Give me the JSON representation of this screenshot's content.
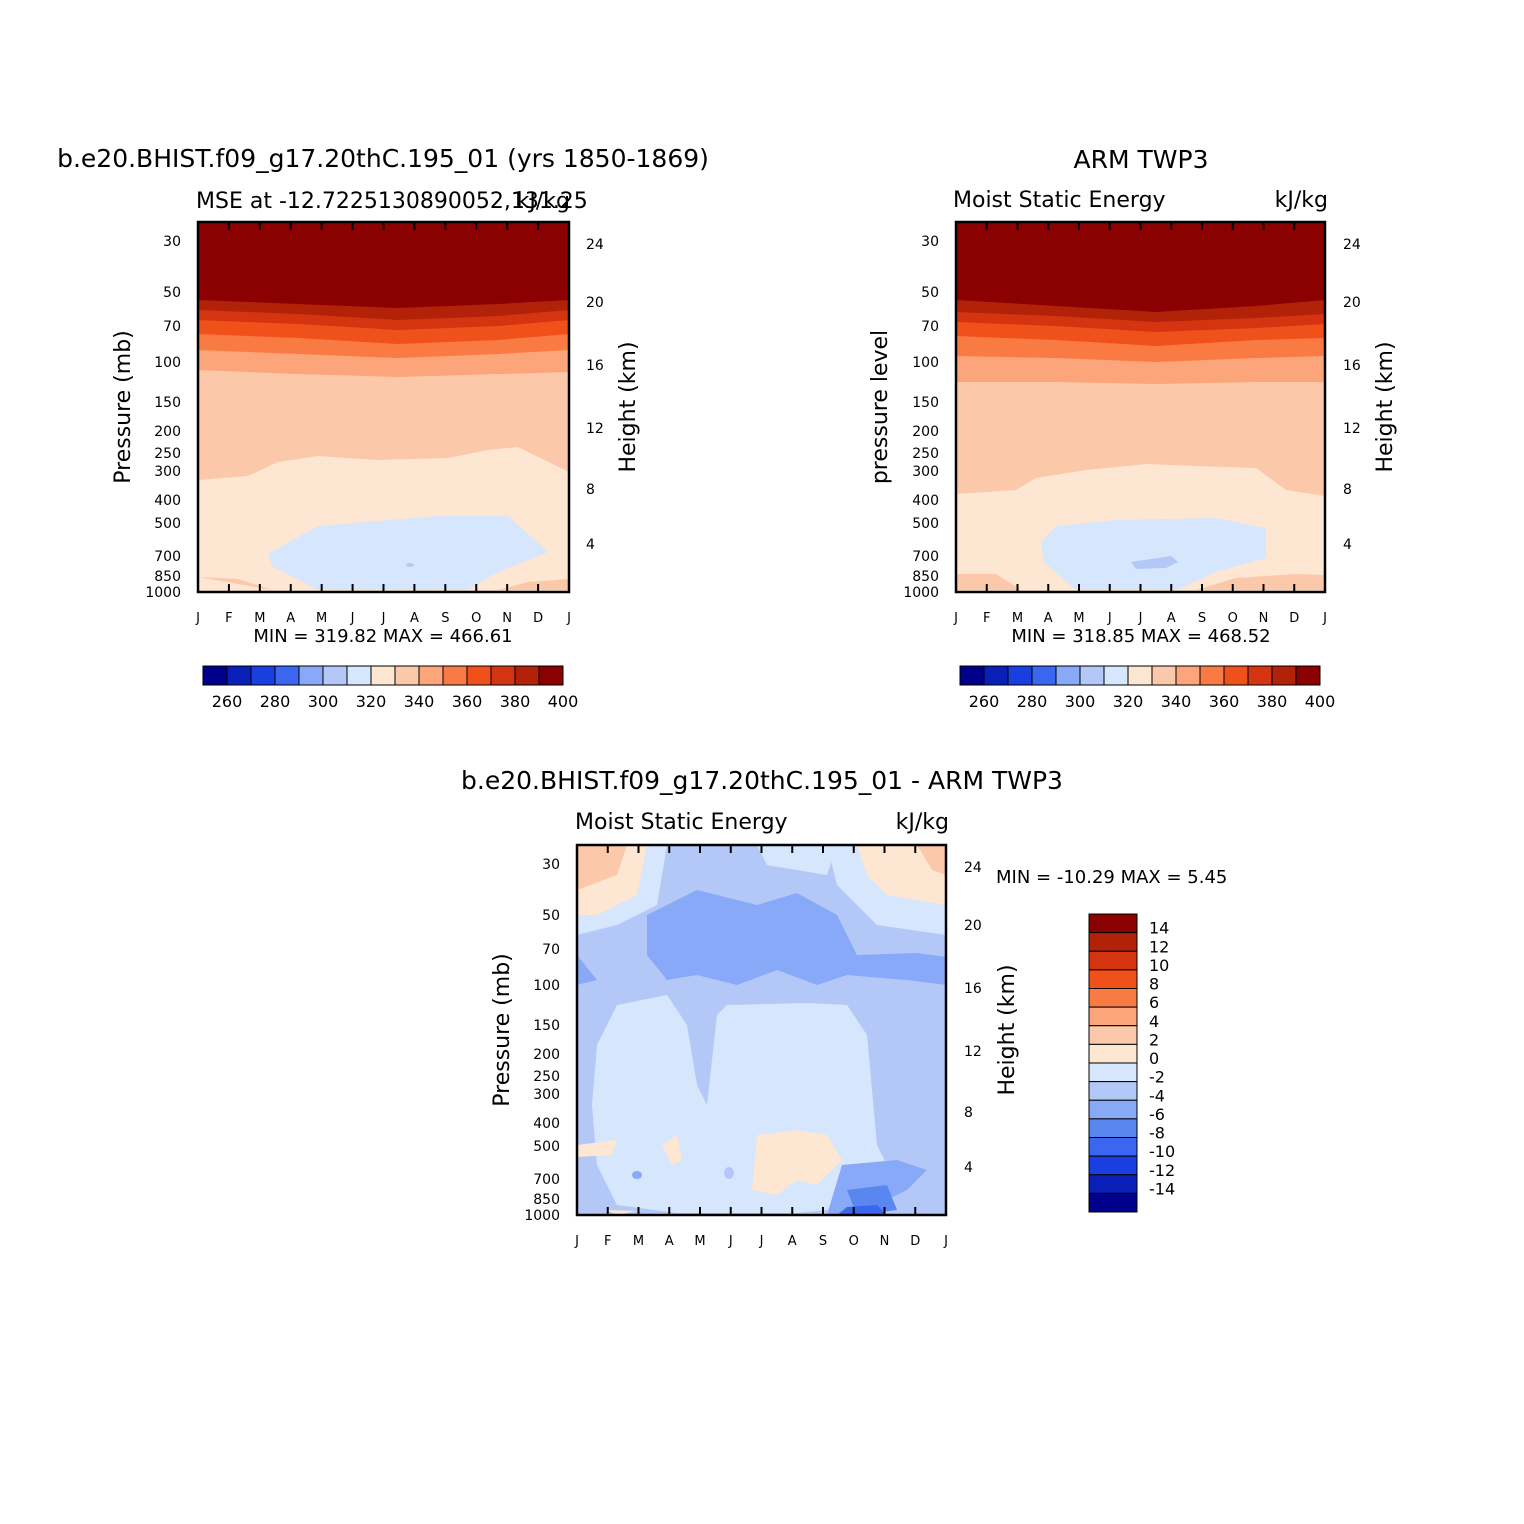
{
  "colors": {
    "abs_palette": [
      "#00008b",
      "#0a1fb8",
      "#1a3fe0",
      "#3a66f0",
      "#88a8f8",
      "#b4c8f8",
      "#d6e6fc",
      "#fde6d2",
      "#fcc8aa",
      "#fca47a",
      "#fa7a44",
      "#f0501a",
      "#d43410",
      "#b22208",
      "#8b0000"
    ],
    "diff_palette": [
      "#00008b",
      "#0a1fb8",
      "#1a3fe0",
      "#3a66f0",
      "#5a86f0",
      "#88a8f8",
      "#b4c8f8",
      "#d6e6fc",
      "#fde6d2",
      "#fcc8aa",
      "#fca47a",
      "#fa7a44",
      "#f0501a",
      "#d43410",
      "#b22208",
      "#8b0000"
    ]
  },
  "chart_data": [
    {
      "type": "heatmap",
      "title": "b.e20.BHIST.f09_g17.20thC.195_01 (yrs 1850-1869)",
      "subtitle_left": "MSE at -12.7225130890052,131.25",
      "subtitle_right": "kJ/kg",
      "ylabel": "Pressure (mb)",
      "ylabel_right": "Height (km)",
      "x_ticks": [
        "J",
        "F",
        "M",
        "A",
        "M",
        "J",
        "J",
        "A",
        "S",
        "O",
        "N",
        "D",
        "J"
      ],
      "y_ticks": [
        "30",
        "50",
        "70",
        "100",
        "150",
        "200",
        "250",
        "300",
        "400",
        "500",
        "700",
        "850",
        "1000"
      ],
      "y_ticks_right": [
        "24",
        "20",
        "16",
        "12",
        "8",
        "4"
      ],
      "ylim": [
        1000,
        25
      ],
      "min_max_text": "MIN = 319.82 MAX = 466.61",
      "colorbar_labels": [
        "260",
        "280",
        "300",
        "320",
        "340",
        "360",
        "380",
        "400"
      ],
      "contour_levels": [
        260,
        270,
        280,
        290,
        300,
        310,
        320,
        330,
        340,
        350,
        360,
        370,
        380,
        390,
        400
      ]
    },
    {
      "type": "heatmap",
      "title": "ARM TWP3",
      "subtitle_left": "Moist Static Energy",
      "subtitle_right": "kJ/kg",
      "ylabel": "pressure level",
      "ylabel_right": "Height (km)",
      "x_ticks": [
        "J",
        "F",
        "M",
        "A",
        "M",
        "J",
        "J",
        "A",
        "S",
        "O",
        "N",
        "D",
        "J"
      ],
      "y_ticks": [
        "30",
        "50",
        "70",
        "100",
        "150",
        "200",
        "250",
        "300",
        "400",
        "500",
        "700",
        "850",
        "1000"
      ],
      "y_ticks_right": [
        "24",
        "20",
        "16",
        "12",
        "8",
        "4"
      ],
      "ylim": [
        1000,
        25
      ],
      "min_max_text": "MIN = 318.85 MAX = 468.52",
      "colorbar_labels": [
        "260",
        "280",
        "300",
        "320",
        "340",
        "360",
        "380",
        "400"
      ],
      "contour_levels": [
        260,
        270,
        280,
        290,
        300,
        310,
        320,
        330,
        340,
        350,
        360,
        370,
        380,
        390,
        400
      ]
    },
    {
      "type": "heatmap",
      "title": "b.e20.BHIST.f09_g17.20thC.195_01 - ARM TWP3",
      "subtitle_left": "Moist Static Energy",
      "subtitle_right": "kJ/kg",
      "ylabel": "Pressure (mb)",
      "ylabel_right": "Height (km)",
      "x_ticks": [
        "J",
        "F",
        "M",
        "A",
        "M",
        "J",
        "J",
        "A",
        "S",
        "O",
        "N",
        "D",
        "J"
      ],
      "y_ticks": [
        "30",
        "50",
        "70",
        "100",
        "150",
        "200",
        "250",
        "300",
        "400",
        "500",
        "700",
        "850",
        "1000"
      ],
      "y_ticks_right": [
        "24",
        "20",
        "16",
        "12",
        "8",
        "4"
      ],
      "ylim": [
        1000,
        25
      ],
      "min_max_text": "MIN = -10.29 MAX =    5.45",
      "colorbar_labels": [
        "14",
        "12",
        "10",
        "8",
        "6",
        "4",
        "2",
        "0",
        "-2",
        "-4",
        "-6",
        "-8",
        "-10",
        "-12",
        "-14"
      ],
      "contour_levels": [
        -14,
        -12,
        -10,
        -8,
        -6,
        -4,
        -2,
        0,
        2,
        4,
        6,
        8,
        10,
        12,
        14
      ]
    }
  ]
}
